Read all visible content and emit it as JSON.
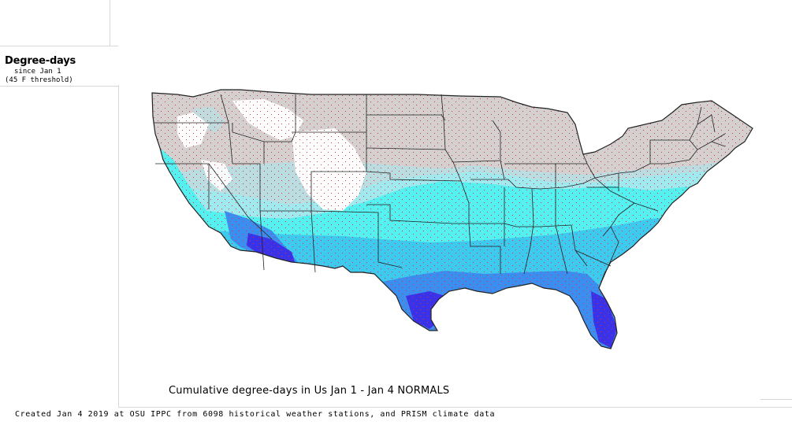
{
  "legend": {
    "title": "Degree-days",
    "subtitle_1": "since Jan 1",
    "subtitle_2": "(45 F threshold)"
  },
  "map": {
    "title": "Cumulative degree-days in Us  Jan 1 - Jan 4 NORMALS",
    "region": "Continental United States",
    "colors": {
      "cold": "#d4d0d0",
      "snow": "#ffffff",
      "cool": "#b9dde1",
      "mid": "#9fe9ef",
      "warm": "#55f0f0",
      "warmer": "#3ec9ee",
      "hot": "#3b8ef0",
      "hottest": "#3a32e8",
      "stations": "#d8323c",
      "borders": "#222222"
    }
  },
  "footer": {
    "text": "Created Jan 4 2019 at OSU IPPC from 6098 historical weather stations, and PRISM climate data"
  }
}
